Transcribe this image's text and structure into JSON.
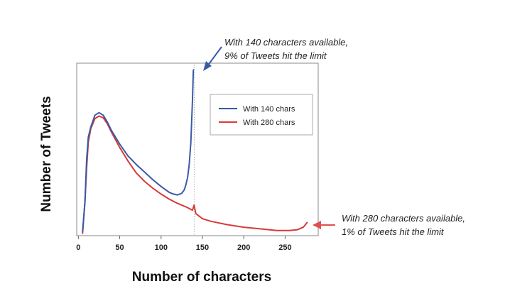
{
  "chart_data": {
    "type": "line",
    "xlabel": "Number of characters",
    "ylabel": "Number of Tweets",
    "xlim": [
      -2,
      290
    ],
    "ylim": [
      0,
      100
    ],
    "x_ticks": [
      0,
      50,
      100,
      150,
      200,
      250
    ],
    "grid": false,
    "legend_position": "top-right",
    "series": [
      {
        "name": "With 140 chars",
        "color": "#3a5aa8",
        "points": [
          [
            5,
            2
          ],
          [
            8,
            20
          ],
          [
            10,
            45
          ],
          [
            12,
            58
          ],
          [
            15,
            64
          ],
          [
            20,
            71
          ],
          [
            25,
            72.5
          ],
          [
            30,
            71
          ],
          [
            35,
            67
          ],
          [
            40,
            62
          ],
          [
            50,
            54
          ],
          [
            60,
            47
          ],
          [
            70,
            42
          ],
          [
            80,
            37.5
          ],
          [
            90,
            33
          ],
          [
            100,
            29
          ],
          [
            110,
            25.5
          ],
          [
            115,
            24.5
          ],
          [
            120,
            24
          ],
          [
            125,
            25
          ],
          [
            128,
            27
          ],
          [
            130,
            30
          ],
          [
            132,
            34
          ],
          [
            134,
            42
          ],
          [
            136,
            55
          ],
          [
            138,
            80
          ],
          [
            139,
            97.5
          ],
          [
            140,
            98
          ]
        ]
      },
      {
        "name": "With 280 chars",
        "color": "#d63a3a",
        "points": [
          [
            5,
            1
          ],
          [
            8,
            20
          ],
          [
            10,
            40
          ],
          [
            12,
            55
          ],
          [
            15,
            63
          ],
          [
            20,
            69
          ],
          [
            25,
            70.5
          ],
          [
            30,
            69.5
          ],
          [
            35,
            66
          ],
          [
            40,
            61
          ],
          [
            50,
            52
          ],
          [
            60,
            44
          ],
          [
            70,
            37
          ],
          [
            80,
            32
          ],
          [
            90,
            28
          ],
          [
            100,
            24.5
          ],
          [
            110,
            21.5
          ],
          [
            120,
            19
          ],
          [
            130,
            17
          ],
          [
            138,
            15
          ],
          [
            140,
            18
          ],
          [
            142,
            13
          ],
          [
            150,
            10
          ],
          [
            160,
            8.5
          ],
          [
            180,
            6.5
          ],
          [
            200,
            5
          ],
          [
            220,
            4
          ],
          [
            240,
            3
          ],
          [
            255,
            3
          ],
          [
            265,
            3.5
          ],
          [
            272,
            5
          ],
          [
            277,
            8
          ]
        ]
      }
    ],
    "annotations": [
      {
        "id": "top",
        "lines": [
          "With 140 characters available,",
          "9% of Tweets hit the limit"
        ],
        "color": "#3a5aa8"
      },
      {
        "id": "right",
        "lines": [
          "With 280 characters available,",
          "1% of Tweets hit the limit"
        ],
        "color": "#e05050"
      }
    ],
    "reference_line": {
      "x": 140,
      "style": "dotted"
    }
  }
}
